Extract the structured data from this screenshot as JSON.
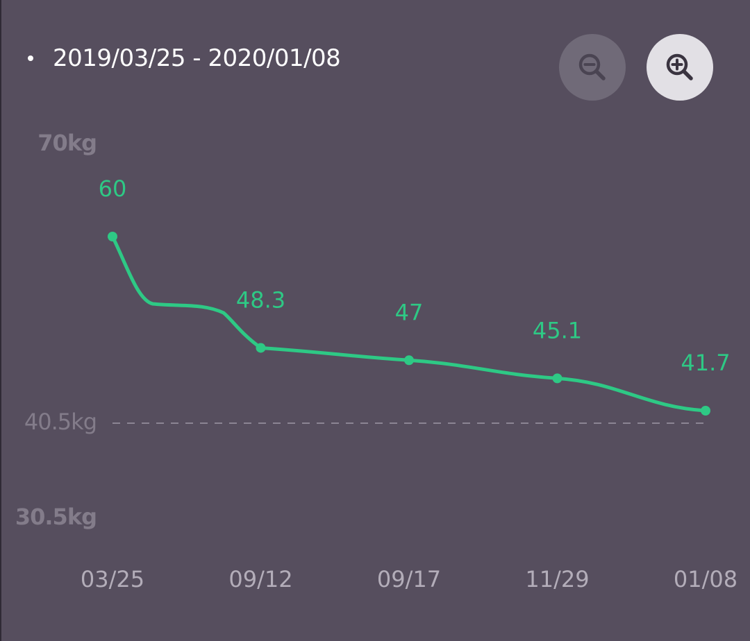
{
  "header": {
    "date_range": "2019/03/25 - 2020/01/08"
  },
  "controls": {
    "zoom_out_icon": "zoom-out-icon",
    "zoom_in_icon": "zoom-in-icon"
  },
  "colors": {
    "background": "#564e5e",
    "line": "#2ec985",
    "zoom_out_bg": "#706a78",
    "zoom_in_bg": "#e2e0e5"
  },
  "chart_data": {
    "type": "line",
    "title": "",
    "xlabel": "",
    "ylabel": "",
    "categories": [
      "03/25",
      "09/12",
      "09/17",
      "11/29",
      "01/08"
    ],
    "series": [
      {
        "values": [
          60,
          48.3,
          47,
          45.1,
          41.7
        ],
        "labels": [
          "60",
          "48.3",
          "47",
          "45.1",
          "41.7"
        ]
      }
    ],
    "y_axis_labels": [
      {
        "value": 70,
        "label": "70kg"
      },
      {
        "value": 40.5,
        "label": "40.5kg"
      },
      {
        "value": 30.5,
        "label": "30.5kg"
      }
    ],
    "reference_line": {
      "value": 40.5,
      "style": "dashed"
    },
    "ylim": [
      30.5,
      70
    ],
    "grid": false,
    "legend": "none"
  }
}
